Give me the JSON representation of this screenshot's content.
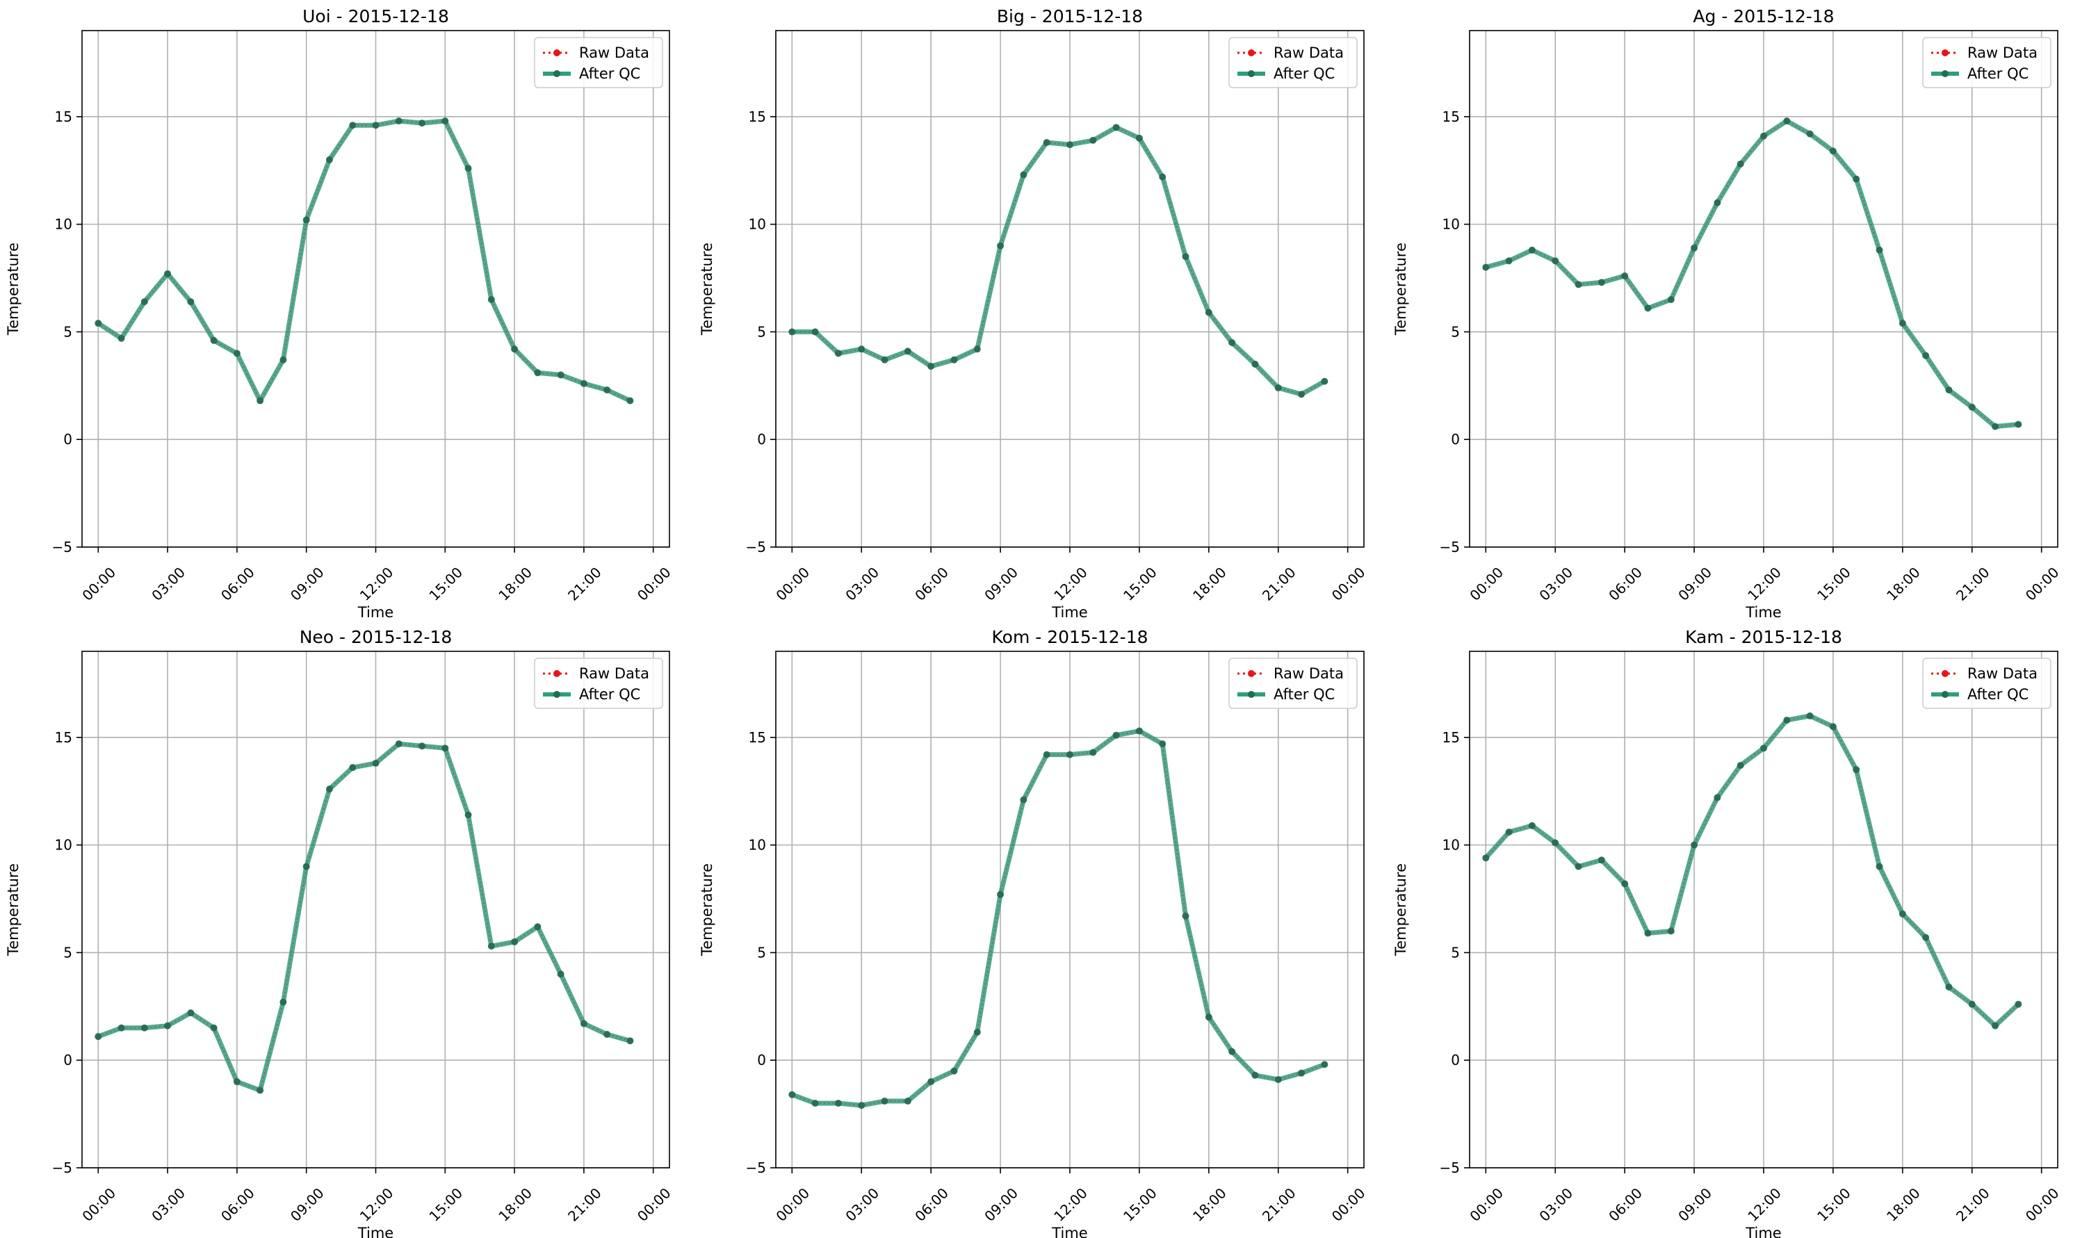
{
  "colors": {
    "raw": "#e8141a",
    "qc": "#2f9e7c",
    "qc_marker": "#1f6e55",
    "grid": "#b0b0b0"
  },
  "chart_data": [
    {
      "type": "line",
      "title": "Uoi - 2015-12-18",
      "xlabel": "Time",
      "ylabel": "Temperature",
      "ylim": [
        -5,
        19
      ],
      "yticks": [
        -5,
        0,
        5,
        10,
        15
      ],
      "xticks": [
        "00:00",
        "03:00",
        "06:00",
        "09:00",
        "12:00",
        "15:00",
        "18:00",
        "21:00",
        "00:00"
      ],
      "grid": true,
      "legend": "top-right",
      "x": [
        0,
        1,
        2,
        3,
        4,
        5,
        6,
        7,
        8,
        9,
        10,
        11,
        12,
        13,
        14,
        15,
        16,
        17,
        18,
        19,
        20,
        21,
        22,
        23
      ],
      "series": [
        {
          "name": "Raw Data",
          "values": [
            5.4,
            4.7,
            6.4,
            7.7,
            6.4,
            4.6,
            4.0,
            1.8,
            3.7,
            10.2,
            13.0,
            14.6,
            14.6,
            14.8,
            14.7,
            14.8,
            12.6,
            6.5,
            4.2,
            3.1,
            3.0,
            2.6,
            2.3,
            1.8
          ]
        },
        {
          "name": "After QC",
          "values": [
            5.4,
            4.7,
            6.4,
            7.7,
            6.4,
            4.6,
            4.0,
            1.8,
            3.7,
            10.2,
            13.0,
            14.6,
            14.6,
            14.8,
            14.7,
            14.8,
            12.6,
            6.5,
            4.2,
            3.1,
            3.0,
            2.6,
            2.3,
            1.8
          ]
        }
      ]
    },
    {
      "type": "line",
      "title": "Big - 2015-12-18",
      "xlabel": "Time",
      "ylabel": "Temperature",
      "ylim": [
        -5,
        19
      ],
      "yticks": [
        -5,
        0,
        5,
        10,
        15
      ],
      "xticks": [
        "00:00",
        "03:00",
        "06:00",
        "09:00",
        "12:00",
        "15:00",
        "18:00",
        "21:00",
        "00:00"
      ],
      "grid": true,
      "legend": "top-right",
      "x": [
        0,
        1,
        2,
        3,
        4,
        5,
        6,
        7,
        8,
        9,
        10,
        11,
        12,
        13,
        14,
        15,
        16,
        17,
        18,
        19,
        20,
        21,
        22,
        23
      ],
      "series": [
        {
          "name": "Raw Data",
          "values": [
            5.0,
            5.0,
            4.0,
            4.2,
            3.7,
            4.1,
            3.4,
            3.7,
            4.2,
            9.0,
            12.3,
            13.8,
            13.7,
            13.9,
            14.5,
            14.0,
            12.2,
            8.5,
            5.9,
            4.5,
            3.5,
            2.4,
            2.1,
            2.7
          ]
        },
        {
          "name": "After QC",
          "values": [
            5.0,
            5.0,
            4.0,
            4.2,
            3.7,
            4.1,
            3.4,
            3.7,
            4.2,
            9.0,
            12.3,
            13.8,
            13.7,
            13.9,
            14.5,
            14.0,
            12.2,
            8.5,
            5.9,
            4.5,
            3.5,
            2.4,
            2.1,
            2.7
          ]
        }
      ]
    },
    {
      "type": "line",
      "title": "Ag - 2015-12-18",
      "xlabel": "Time",
      "ylabel": "Temperature",
      "ylim": [
        -5,
        19
      ],
      "yticks": [
        -5,
        0,
        5,
        10,
        15
      ],
      "xticks": [
        "00:00",
        "03:00",
        "06:00",
        "09:00",
        "12:00",
        "15:00",
        "18:00",
        "21:00",
        "00:00"
      ],
      "grid": true,
      "legend": "top-right",
      "x": [
        0,
        1,
        2,
        3,
        4,
        5,
        6,
        7,
        8,
        9,
        10,
        11,
        12,
        13,
        14,
        15,
        16,
        17,
        18,
        19,
        20,
        21,
        22,
        23
      ],
      "series": [
        {
          "name": "Raw Data",
          "values": [
            8.0,
            8.3,
            8.8,
            8.3,
            7.2,
            7.3,
            7.6,
            6.1,
            6.5,
            8.9,
            11.0,
            12.8,
            14.1,
            14.8,
            14.2,
            13.4,
            12.1,
            8.8,
            5.4,
            3.9,
            2.3,
            1.5,
            0.6,
            0.7
          ]
        },
        {
          "name": "After QC",
          "values": [
            8.0,
            8.3,
            8.8,
            8.3,
            7.2,
            7.3,
            7.6,
            6.1,
            6.5,
            8.9,
            11.0,
            12.8,
            14.1,
            14.8,
            14.2,
            13.4,
            12.1,
            8.8,
            5.4,
            3.9,
            2.3,
            1.5,
            0.6,
            0.7
          ]
        }
      ]
    },
    {
      "type": "line",
      "title": "Neo - 2015-12-18",
      "xlabel": "Time",
      "ylabel": "Temperature",
      "ylim": [
        -5,
        19
      ],
      "yticks": [
        -5,
        0,
        5,
        10,
        15
      ],
      "xticks": [
        "00:00",
        "03:00",
        "06:00",
        "09:00",
        "12:00",
        "15:00",
        "18:00",
        "21:00",
        "00:00"
      ],
      "grid": true,
      "legend": "top-right",
      "x": [
        0,
        1,
        2,
        3,
        4,
        5,
        6,
        7,
        8,
        9,
        10,
        11,
        12,
        13,
        14,
        15,
        16,
        17,
        18,
        19,
        20,
        21,
        22,
        23
      ],
      "series": [
        {
          "name": "Raw Data",
          "values": [
            1.1,
            1.5,
            1.5,
            1.6,
            2.2,
            1.5,
            -1.0,
            -1.4,
            2.7,
            9.0,
            12.6,
            13.6,
            13.8,
            14.7,
            14.6,
            14.5,
            11.4,
            5.3,
            5.5,
            6.2,
            4.0,
            1.7,
            1.2,
            0.9
          ]
        },
        {
          "name": "After QC",
          "values": [
            1.1,
            1.5,
            1.5,
            1.6,
            2.2,
            1.5,
            -1.0,
            -1.4,
            2.7,
            9.0,
            12.6,
            13.6,
            13.8,
            14.7,
            14.6,
            14.5,
            11.4,
            5.3,
            5.5,
            6.2,
            4.0,
            1.7,
            1.2,
            0.9
          ]
        }
      ]
    },
    {
      "type": "line",
      "title": "Kom - 2015-12-18",
      "xlabel": "Time",
      "ylabel": "Temperature",
      "ylim": [
        -5,
        19
      ],
      "yticks": [
        -5,
        0,
        5,
        10,
        15
      ],
      "xticks": [
        "00:00",
        "03:00",
        "06:00",
        "09:00",
        "12:00",
        "15:00",
        "18:00",
        "21:00",
        "00:00"
      ],
      "grid": true,
      "legend": "top-right",
      "x": [
        0,
        1,
        2,
        3,
        4,
        5,
        6,
        7,
        8,
        9,
        10,
        11,
        12,
        13,
        14,
        15,
        16,
        17,
        18,
        19,
        20,
        21,
        22,
        23
      ],
      "series": [
        {
          "name": "Raw Data",
          "values": [
            -1.6,
            -2.0,
            -2.0,
            -2.1,
            -1.9,
            -1.9,
            -1.0,
            -0.5,
            1.3,
            7.7,
            12.1,
            14.2,
            14.2,
            14.3,
            15.1,
            15.3,
            14.7,
            6.7,
            2.0,
            0.4,
            -0.7,
            -0.9,
            -0.6,
            -0.2
          ]
        },
        {
          "name": "After QC",
          "values": [
            -1.6,
            -2.0,
            -2.0,
            -2.1,
            -1.9,
            -1.9,
            -1.0,
            -0.5,
            1.3,
            7.7,
            12.1,
            14.2,
            14.2,
            14.3,
            15.1,
            15.3,
            14.7,
            6.7,
            2.0,
            0.4,
            -0.7,
            -0.9,
            -0.6,
            -0.2
          ]
        }
      ]
    },
    {
      "type": "line",
      "title": "Kam - 2015-12-18",
      "xlabel": "Time",
      "ylabel": "Temperature",
      "ylim": [
        -5,
        19
      ],
      "yticks": [
        -5,
        0,
        5,
        10,
        15
      ],
      "xticks": [
        "00:00",
        "03:00",
        "06:00",
        "09:00",
        "12:00",
        "15:00",
        "18:00",
        "21:00",
        "00:00"
      ],
      "grid": true,
      "legend": "top-right",
      "x": [
        0,
        1,
        2,
        3,
        4,
        5,
        6,
        7,
        8,
        9,
        10,
        11,
        12,
        13,
        14,
        15,
        16,
        17,
        18,
        19,
        20,
        21,
        22,
        23
      ],
      "series": [
        {
          "name": "Raw Data",
          "values": [
            9.4,
            10.6,
            10.9,
            10.1,
            9.0,
            9.3,
            8.2,
            5.9,
            6.0,
            10.0,
            12.2,
            13.7,
            14.5,
            15.8,
            16.0,
            15.5,
            13.5,
            9.0,
            6.8,
            5.7,
            3.4,
            2.6,
            1.6,
            2.6
          ]
        },
        {
          "name": "After QC",
          "values": [
            9.4,
            10.6,
            10.9,
            10.1,
            9.0,
            9.3,
            8.2,
            5.9,
            6.0,
            10.0,
            12.2,
            13.7,
            14.5,
            15.8,
            16.0,
            15.5,
            13.5,
            9.0,
            6.8,
            5.7,
            3.4,
            2.6,
            1.6,
            2.6
          ]
        }
      ]
    }
  ]
}
